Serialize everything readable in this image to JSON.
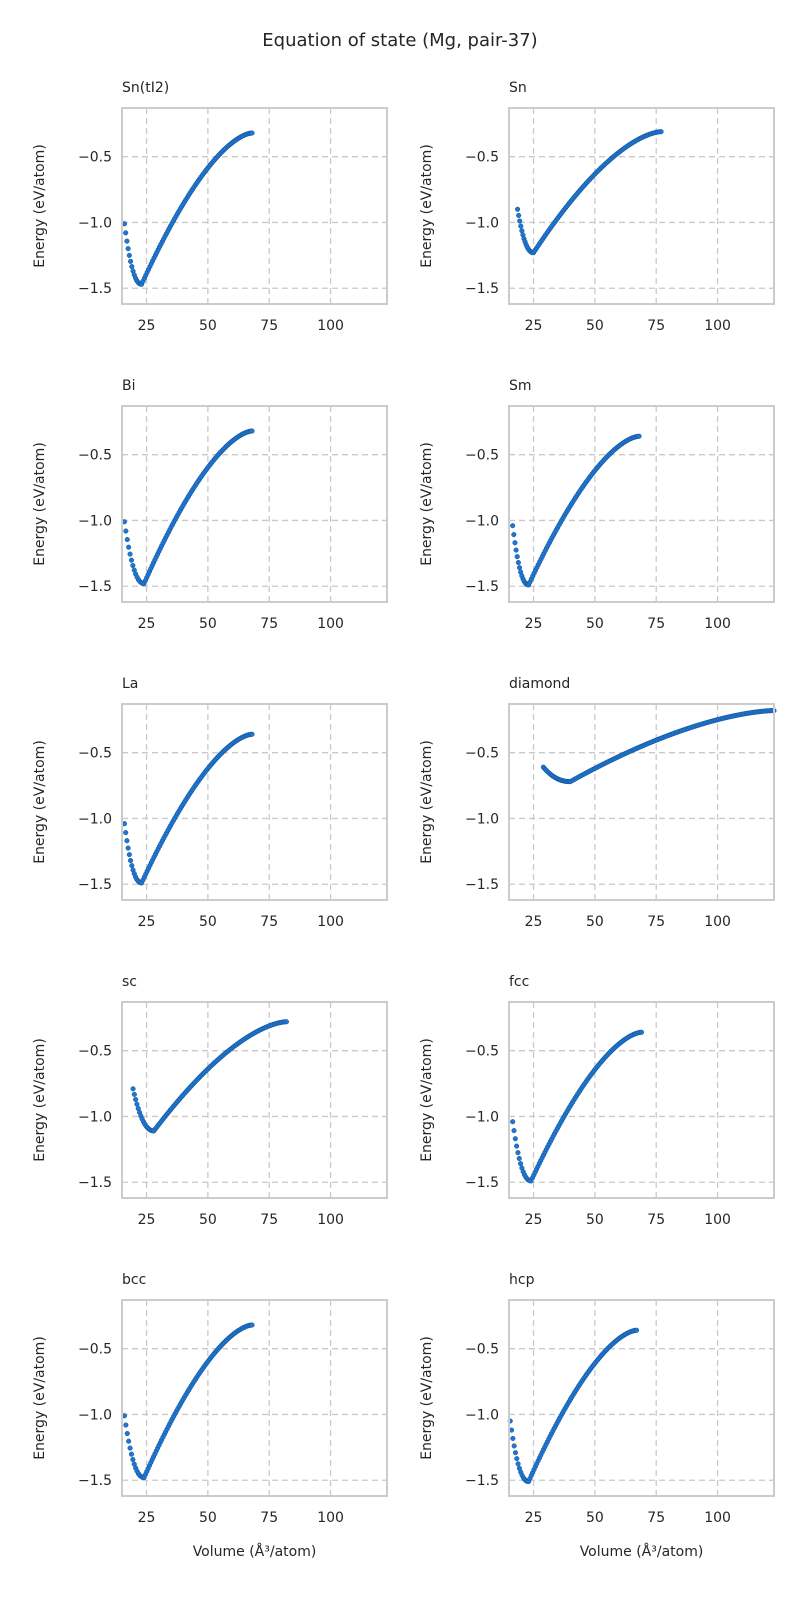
{
  "figure": {
    "title": "Equation of state (Mg, pair-37)",
    "point_color": "#1f77d4",
    "point_edge_color": "#15508f",
    "grid_color": "#c9c9c9",
    "frame_color": "#cccccc"
  },
  "chart_data": [
    {
      "type": "scatter",
      "title": "Sn(tI2)",
      "xlabel": "",
      "ylabel": "Energy (eV/atom)",
      "xlim": [
        15,
        123
      ],
      "ylim": [
        -1.62,
        -0.13
      ],
      "xticks": [
        25,
        50,
        75,
        100
      ],
      "yticks": [
        -1.5,
        -1.0,
        -0.5
      ],
      "grid": true,
      "curve": {
        "v0": 23,
        "e0": -1.47,
        "vmin": 16,
        "vmax": 68,
        "emin": -1.01,
        "emax": -0.32,
        "npts": 95
      }
    },
    {
      "type": "scatter",
      "title": "Sn",
      "xlabel": "",
      "ylabel": "Energy (eV/atom)",
      "xlim": [
        15,
        123
      ],
      "ylim": [
        -1.62,
        -0.13
      ],
      "xticks": [
        25,
        50,
        75,
        100
      ],
      "yticks": [
        -1.5,
        -1.0,
        -0.5
      ],
      "grid": true,
      "curve": {
        "v0": 25,
        "e0": -1.23,
        "vmin": 18.5,
        "vmax": 77,
        "emin": -0.9,
        "emax": -0.31,
        "npts": 100
      }
    },
    {
      "type": "scatter",
      "title": "Bi",
      "xlabel": "",
      "ylabel": "Energy (eV/atom)",
      "xlim": [
        15,
        123
      ],
      "ylim": [
        -1.62,
        -0.13
      ],
      "xticks": [
        25,
        50,
        75,
        100
      ],
      "yticks": [
        -1.5,
        -1.0,
        -0.5
      ],
      "grid": true,
      "curve": {
        "v0": 24,
        "e0": -1.48,
        "vmin": 16,
        "vmax": 68,
        "emin": -1.01,
        "emax": -0.32,
        "npts": 95
      }
    },
    {
      "type": "scatter",
      "title": "Sm",
      "xlabel": "",
      "ylabel": "Energy (eV/atom)",
      "xlim": [
        15,
        123
      ],
      "ylim": [
        -1.62,
        -0.13
      ],
      "xticks": [
        25,
        50,
        75,
        100
      ],
      "yticks": [
        -1.5,
        -1.0,
        -0.5
      ],
      "grid": true,
      "curve": {
        "v0": 23,
        "e0": -1.49,
        "vmin": 16.5,
        "vmax": 68,
        "emin": -1.04,
        "emax": -0.36,
        "npts": 95
      }
    },
    {
      "type": "scatter",
      "title": "La",
      "xlabel": "",
      "ylabel": "Energy (eV/atom)",
      "xlim": [
        15,
        123
      ],
      "ylim": [
        -1.62,
        -0.13
      ],
      "xticks": [
        25,
        50,
        75,
        100
      ],
      "yticks": [
        -1.5,
        -1.0,
        -0.5
      ],
      "grid": true,
      "curve": {
        "v0": 23,
        "e0": -1.49,
        "vmin": 16,
        "vmax": 68,
        "emin": -1.04,
        "emax": -0.36,
        "npts": 95
      }
    },
    {
      "type": "scatter",
      "title": "diamond",
      "xlabel": "",
      "ylabel": "Energy (eV/atom)",
      "xlim": [
        15,
        123
      ],
      "ylim": [
        -1.62,
        -0.13
      ],
      "xticks": [
        25,
        50,
        75,
        100
      ],
      "yticks": [
        -1.5,
        -1.0,
        -0.5
      ],
      "grid": true,
      "curve": {
        "v0": 40,
        "e0": -0.72,
        "vmin": 29,
        "vmax": 123,
        "emin": -0.61,
        "emax": -0.18,
        "npts": 150
      }
    },
    {
      "type": "scatter",
      "title": "sc",
      "xlabel": "",
      "ylabel": "Energy (eV/atom)",
      "xlim": [
        15,
        123
      ],
      "ylim": [
        -1.62,
        -0.13
      ],
      "xticks": [
        25,
        50,
        75,
        100
      ],
      "yticks": [
        -1.5,
        -1.0,
        -0.5
      ],
      "grid": true,
      "curve": {
        "v0": 28,
        "e0": -1.11,
        "vmin": 19.5,
        "vmax": 82,
        "emin": -0.79,
        "emax": -0.28,
        "npts": 105
      }
    },
    {
      "type": "scatter",
      "title": "fcc",
      "xlabel": "",
      "ylabel": "Energy (eV/atom)",
      "xlim": [
        15,
        123
      ],
      "ylim": [
        -1.62,
        -0.13
      ],
      "xticks": [
        25,
        50,
        75,
        100
      ],
      "yticks": [
        -1.5,
        -1.0,
        -0.5
      ],
      "grid": true,
      "curve": {
        "v0": 24,
        "e0": -1.49,
        "vmin": 16.5,
        "vmax": 69,
        "emin": -1.04,
        "emax": -0.36,
        "npts": 95
      }
    },
    {
      "type": "scatter",
      "title": "bcc",
      "xlabel": "Volume (Å³/atom)",
      "ylabel": "Energy (eV/atom)",
      "xlim": [
        15,
        123
      ],
      "ylim": [
        -1.62,
        -0.13
      ],
      "xticks": [
        25,
        50,
        75,
        100
      ],
      "yticks": [
        -1.5,
        -1.0,
        -0.5
      ],
      "grid": true,
      "curve": {
        "v0": 24,
        "e0": -1.48,
        "vmin": 16,
        "vmax": 68,
        "emin": -1.01,
        "emax": -0.32,
        "npts": 95
      }
    },
    {
      "type": "scatter",
      "title": "hcp",
      "xlabel": "Volume (Å³/atom)",
      "ylabel": "Energy (eV/atom)",
      "xlim": [
        15,
        123
      ],
      "ylim": [
        -1.62,
        -0.13
      ],
      "xticks": [
        25,
        50,
        75,
        100
      ],
      "yticks": [
        -1.5,
        -1.0,
        -0.5
      ],
      "grid": true,
      "curve": {
        "v0": 23,
        "e0": -1.51,
        "vmin": 15.5,
        "vmax": 67,
        "emin": -1.05,
        "emax": -0.36,
        "npts": 95
      }
    }
  ]
}
